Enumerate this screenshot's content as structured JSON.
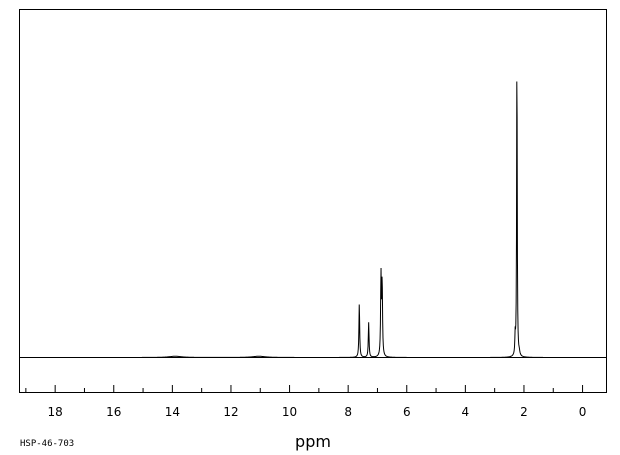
{
  "chart_data": {
    "type": "line",
    "title": "",
    "xlabel": "ppm",
    "ylabel": "",
    "xlim": [
      19.2,
      -0.8
    ],
    "x_reversed": true,
    "ylim": [
      -0.11,
      1.0
    ],
    "grid": false,
    "legend": "none",
    "tick_labels": [
      "18",
      "16",
      "14",
      "12",
      "10",
      "8",
      "6",
      "4",
      "2",
      "0"
    ],
    "tick_values": [
      18,
      16,
      14,
      12,
      10,
      8,
      6,
      4,
      2,
      0
    ],
    "minor_tick_step": 1,
    "series": [
      {
        "peaks": [
          {
            "ppm": 13.9,
            "height": 0.004,
            "width": 0.25
          },
          {
            "ppm": 11.05,
            "height": 0.004,
            "width": 0.25
          },
          {
            "ppm": 7.62,
            "height": 0.17,
            "width": 0.015
          },
          {
            "ppm": 7.3,
            "height": 0.11,
            "width": 0.015
          },
          {
            "ppm": 6.88,
            "height": 0.255,
            "width": 0.015
          },
          {
            "ppm": 6.84,
            "height": 0.235,
            "width": 0.015
          },
          {
            "ppm": 2.3,
            "height": 0.06,
            "width": 0.012
          },
          {
            "ppm": 2.24,
            "height": 0.985,
            "width": 0.012
          },
          {
            "ppm": 2.16,
            "height": 0.01,
            "width": 0.02
          }
        ]
      }
    ]
  },
  "footer": {
    "sample_id": "HSP-46-703"
  }
}
